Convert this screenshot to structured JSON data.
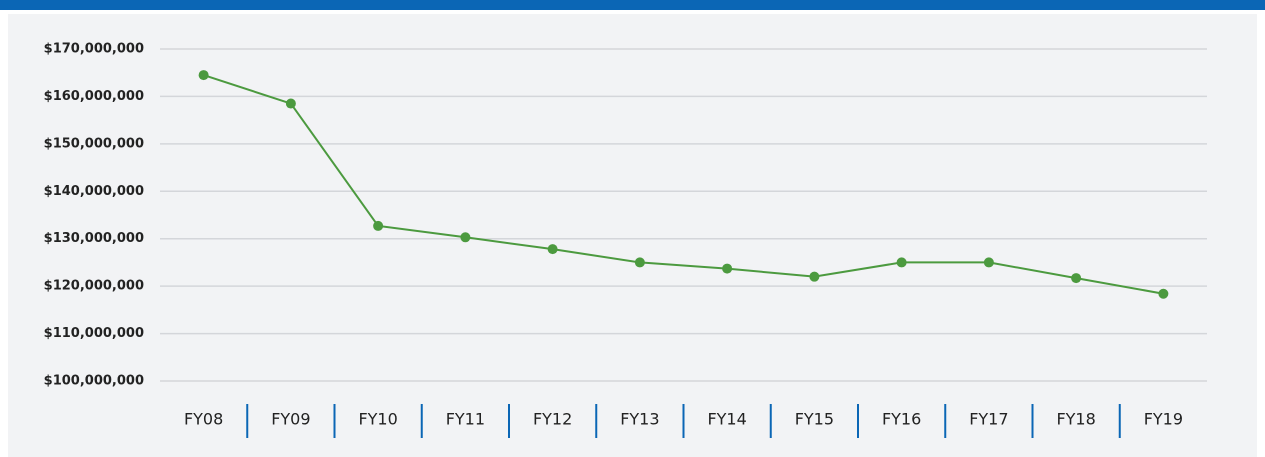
{
  "chart_data": {
    "type": "line",
    "categories": [
      "FY08",
      "FY09",
      "FY10",
      "FY11",
      "FY12",
      "FY13",
      "FY14",
      "FY15",
      "FY16",
      "FY17",
      "FY18",
      "FY19"
    ],
    "values": [
      164500000,
      158500000,
      132700000,
      130300000,
      127800000,
      125000000,
      123700000,
      122000000,
      125000000,
      125000000,
      121700000,
      118400000
    ],
    "color": "#4c9a3f",
    "ylim": [
      100000000,
      170000000
    ],
    "yticks": [
      {
        "value": 100000000,
        "label": "$100,000,000"
      },
      {
        "value": 110000000,
        "label": "$110,000,000"
      },
      {
        "value": 120000000,
        "label": "$120,000,000"
      },
      {
        "value": 130000000,
        "label": "$130,000,000"
      },
      {
        "value": 140000000,
        "label": "$140,000,000"
      },
      {
        "value": 150000000,
        "label": "$150,000,000"
      },
      {
        "value": 160000000,
        "label": "$160,000,000"
      },
      {
        "value": 170000000,
        "label": "$170,000,000"
      }
    ],
    "grid": true
  }
}
